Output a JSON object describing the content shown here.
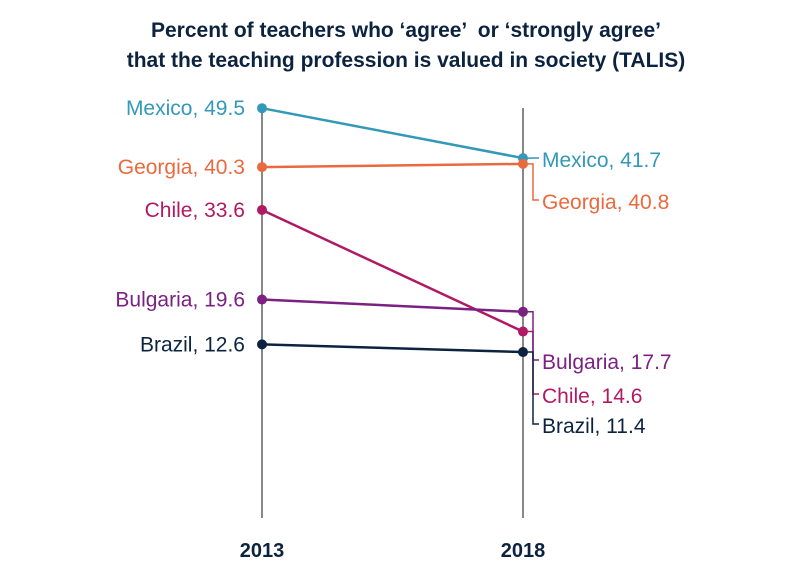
{
  "chart_data": {
    "type": "line",
    "title": [
      "Percent of teachers who ‘agree’  or ‘strongly agree’",
      "that the teaching profession is valued in society (TALIS)"
    ],
    "x": [
      "2013",
      "2018"
    ],
    "ylim": [
      0,
      53
    ],
    "grid": false,
    "series": [
      {
        "name": "Mexico",
        "values": [
          49.5,
          41.7
        ],
        "color": "#3399b8",
        "labels": [
          "Mexico, 49.5",
          "Mexico, 41.7"
        ]
      },
      {
        "name": "Georgia",
        "values": [
          40.3,
          40.8
        ],
        "color": "#ea6a3f",
        "labels": [
          "Georgia, 40.3",
          "Georgia, 40.8"
        ]
      },
      {
        "name": "Chile",
        "values": [
          33.6,
          14.6
        ],
        "color": "#b01a64",
        "labels": [
          "Chile, 33.6",
          "Chile, 14.6"
        ]
      },
      {
        "name": "Bulgaria",
        "values": [
          19.6,
          17.7
        ],
        "color": "#7b2181",
        "labels": [
          "Bulgaria, 19.6",
          "Bulgaria, 17.7"
        ]
      },
      {
        "name": "Brazil",
        "values": [
          12.6,
          11.4
        ],
        "color": "#0c2340",
        "labels": [
          "Brazil, 12.6",
          "Brazil, 11.4"
        ]
      }
    ]
  }
}
